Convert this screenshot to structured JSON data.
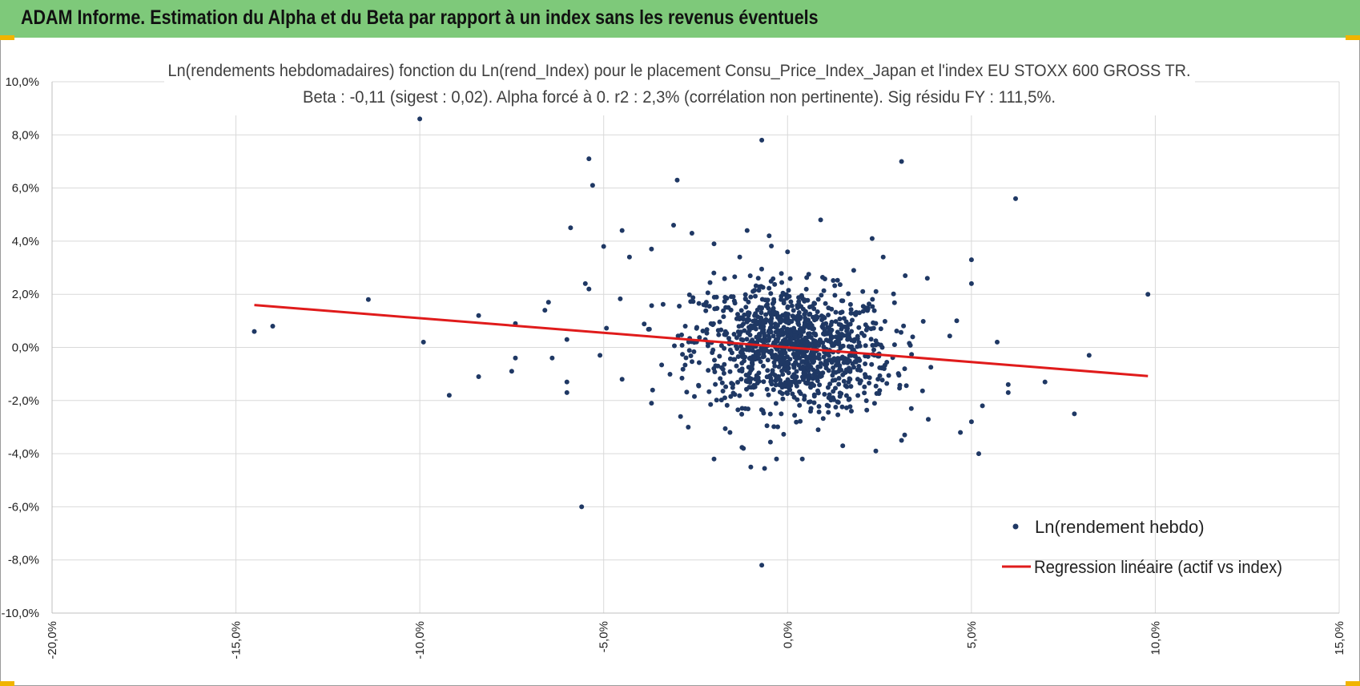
{
  "header": {
    "title": "ADAM Informe. Estimation du Alpha et du Beta par rapport à un index sans les revenus éventuels",
    "accent_color": "#7ec97a",
    "corner_color": "#f0b400"
  },
  "chart_data": {
    "type": "scatter",
    "title_line1": "Ln(rendements hebdomadaires) fonction du Ln(rend_Index) pour le placement Consu_Price_Index_Japan et l'index EU STOXX 600 GROSS TR.",
    "title_line2": "Beta : -0,11  (sigest : 0,02).  Alpha forcé à 0. r2 : 2,3% (corrélation non pertinente). Sig résidu FY : 111,5%.",
    "xlim": [
      -20,
      15
    ],
    "ylim": [
      -10,
      10
    ],
    "x_ticks": [
      -20,
      -15,
      -10,
      -5,
      0,
      5,
      10,
      15
    ],
    "y_ticks": [
      10,
      8,
      6,
      4,
      2,
      0,
      -2,
      -4,
      -6,
      -8,
      -10
    ],
    "x_tick_labels": [
      "-20,0%",
      "-15,0%",
      "-10,0%",
      "-5,0%",
      "0,0%",
      "5,0%",
      "10,0%",
      "15,0%"
    ],
    "y_tick_labels": [
      "10,0%",
      "8,0%",
      "6,0%",
      "4,0%",
      "2,0%",
      "0,0%",
      "-2,0%",
      "-4,0%",
      "-6,0%",
      "-8,0%",
      "-10,0%"
    ],
    "grid": true,
    "xlabel": "",
    "ylabel": "",
    "legend_position": "bottom-right",
    "series": [
      {
        "name": "Ln(rendement hebdo)",
        "kind": "scatter",
        "color": "#1f3864",
        "points": [
          [
            -10.0,
            8.6
          ],
          [
            -0.7,
            7.8
          ],
          [
            -5.4,
            7.1
          ],
          [
            3.1,
            7.0
          ],
          [
            -5.3,
            6.1
          ],
          [
            -3.0,
            6.3
          ],
          [
            6.2,
            5.6
          ],
          [
            -5.9,
            4.5
          ],
          [
            0.9,
            4.8
          ],
          [
            -1.1,
            4.4
          ],
          [
            -0.5,
            4.2
          ],
          [
            2.3,
            4.1
          ],
          [
            -3.1,
            4.6
          ],
          [
            -4.5,
            4.4
          ],
          [
            -2.6,
            4.3
          ],
          [
            -2.0,
            3.9
          ],
          [
            -5.0,
            3.8
          ],
          [
            -4.3,
            3.4
          ],
          [
            -3.7,
            3.7
          ],
          [
            0.0,
            3.6
          ],
          [
            5.0,
            3.3
          ],
          [
            2.6,
            3.4
          ],
          [
            -1.3,
            3.4
          ],
          [
            9.8,
            2.0
          ],
          [
            -11.4,
            1.8
          ],
          [
            -14.5,
            0.6
          ],
          [
            -14.0,
            0.8
          ],
          [
            -9.9,
            0.2
          ],
          [
            -8.4,
            1.2
          ],
          [
            -7.4,
            0.9
          ],
          [
            -6.6,
            1.4
          ],
          [
            -6.5,
            1.7
          ],
          [
            -6.0,
            0.3
          ],
          [
            -5.5,
            2.4
          ],
          [
            -5.4,
            2.2
          ],
          [
            -5.1,
            -0.3
          ],
          [
            -9.2,
            -1.8
          ],
          [
            -8.4,
            -1.1
          ],
          [
            -7.4,
            -0.4
          ],
          [
            -7.5,
            -0.9
          ],
          [
            -6.4,
            -0.4
          ],
          [
            -6.0,
            -1.3
          ],
          [
            -6.0,
            -1.7
          ],
          [
            -5.6,
            -6.0
          ],
          [
            -0.7,
            -8.2
          ],
          [
            -4.5,
            -1.2
          ],
          [
            -3.7,
            -2.1
          ],
          [
            -2.7,
            -3.0
          ],
          [
            -2.0,
            -4.2
          ],
          [
            -1.0,
            -4.5
          ],
          [
            0.4,
            -4.2
          ],
          [
            3.1,
            -3.5
          ],
          [
            4.7,
            -3.2
          ],
          [
            5.2,
            -4.0
          ],
          [
            5.3,
            -2.2
          ],
          [
            5.0,
            -2.8
          ],
          [
            7.0,
            -1.3
          ],
          [
            7.8,
            -2.5
          ],
          [
            8.2,
            -0.3
          ],
          [
            6.0,
            -1.7
          ],
          [
            5.7,
            0.2
          ],
          [
            4.6,
            1.0
          ],
          [
            3.8,
            2.6
          ],
          [
            3.2,
            2.7
          ],
          [
            1.8,
            2.9
          ],
          [
            5.0,
            2.4
          ],
          [
            -0.3,
            -4.2
          ],
          [
            -1.2,
            -3.8
          ],
          [
            2.4,
            -3.9
          ],
          [
            1.5,
            -3.7
          ],
          [
            6.0,
            -1.4
          ]
        ]
      },
      {
        "name": "Regression linéaire (actif vs index)",
        "kind": "line",
        "color": "#e01b1b",
        "slope": -0.11,
        "intercept": 0,
        "x_range": [
          -14.5,
          9.8
        ]
      }
    ]
  }
}
